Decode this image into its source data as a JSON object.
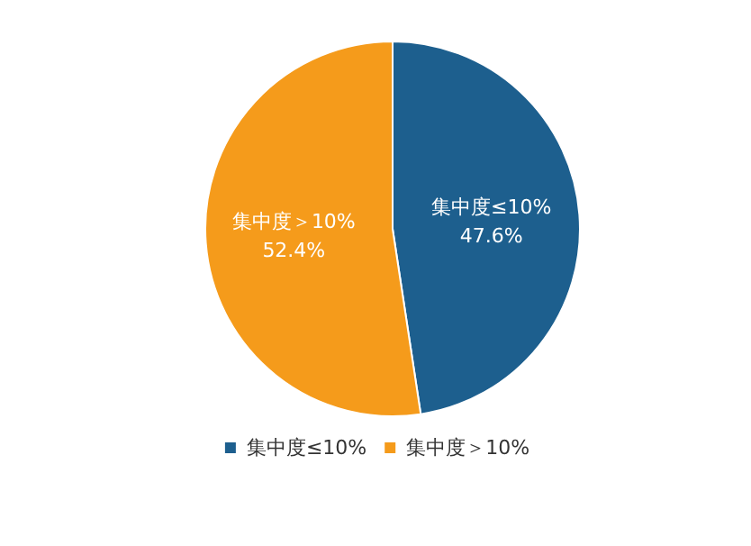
{
  "chart_data": {
    "type": "pie",
    "categories": [
      "集中度≤10%",
      "集中度＞10%"
    ],
    "values": [
      47.6,
      52.4
    ],
    "colors": [
      "#1d5f8e",
      "#f59b1b"
    ],
    "value_labels": [
      "47.6%",
      "52.4%"
    ],
    "legend": "bottom"
  }
}
